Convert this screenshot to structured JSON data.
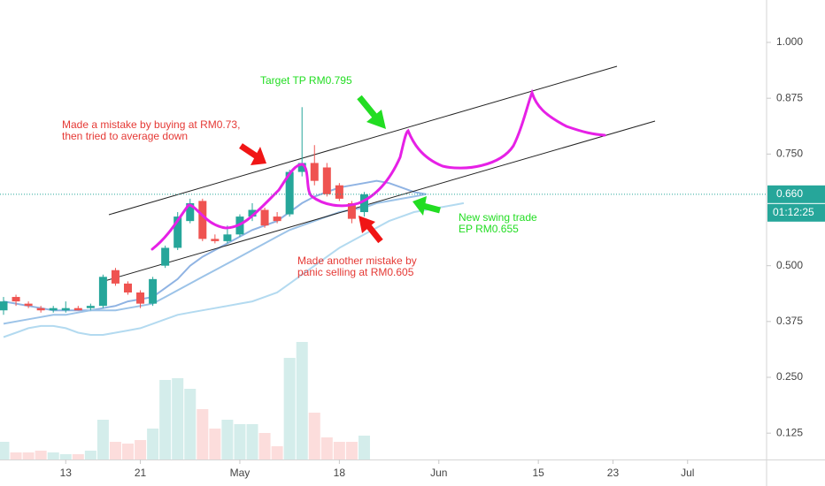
{
  "chart_data": {
    "type": "candlestick",
    "ylim": [
      0.066,
      1.095
    ],
    "yticks": [
      {
        "value": 0.125,
        "label": "0.125"
      },
      {
        "value": 0.25,
        "label": "0.250"
      },
      {
        "value": 0.375,
        "label": "0.375"
      },
      {
        "value": 0.5,
        "label": "0.500"
      },
      {
        "value": 0.75,
        "label": "0.750"
      },
      {
        "value": 0.875,
        "label": "0.875"
      },
      {
        "value": 1.0,
        "label": "1.000"
      }
    ],
    "xlim": [
      -0.285,
      61.28
    ],
    "xticks": [
      {
        "value": 5,
        "label": "13"
      },
      {
        "value": 11,
        "label": "21"
      },
      {
        "value": 19,
        "label": "May"
      },
      {
        "value": 27,
        "label": "18"
      },
      {
        "value": 35,
        "label": "Jun"
      },
      {
        "value": 43,
        "label": "15"
      },
      {
        "value": 49,
        "label": "23"
      },
      {
        "value": 55,
        "label": "Jul"
      }
    ],
    "up_color": "#26a69a",
    "down_color": "#ef5350",
    "open": [
      0.4,
      0.43,
      0.415,
      0.405,
      0.4,
      0.4,
      0.405,
      0.405,
      0.41,
      0.49,
      0.46,
      0.44,
      0.415,
      0.5,
      0.54,
      0.6,
      0.645,
      0.56,
      0.555,
      0.57,
      0.61,
      0.625,
      0.61,
      0.615,
      0.71,
      0.73,
      0.72,
      0.68,
      0.64,
      0.62
    ],
    "high": [
      0.43,
      0.435,
      0.42,
      0.41,
      0.41,
      0.42,
      0.41,
      0.415,
      0.48,
      0.495,
      0.465,
      0.445,
      0.475,
      0.545,
      0.62,
      0.65,
      0.65,
      0.57,
      0.59,
      0.615,
      0.64,
      0.63,
      0.62,
      0.715,
      0.855,
      0.77,
      0.73,
      0.685,
      0.645,
      0.665
    ],
    "low": [
      0.39,
      0.41,
      0.405,
      0.395,
      0.395,
      0.395,
      0.4,
      0.4,
      0.405,
      0.455,
      0.435,
      0.405,
      0.41,
      0.495,
      0.535,
      0.595,
      0.555,
      0.55,
      0.55,
      0.565,
      0.6,
      0.585,
      0.595,
      0.61,
      0.7,
      0.68,
      0.655,
      0.645,
      0.595,
      0.61
    ],
    "close": [
      0.42,
      0.42,
      0.41,
      0.4,
      0.405,
      0.405,
      0.4,
      0.41,
      0.475,
      0.46,
      0.44,
      0.415,
      0.47,
      0.54,
      0.61,
      0.64,
      0.56,
      0.555,
      0.57,
      0.61,
      0.625,
      0.59,
      0.6,
      0.71,
      0.73,
      0.69,
      0.66,
      0.65,
      0.605,
      0.66
    ],
    "volume": [
      20,
      8,
      8,
      10,
      8,
      6,
      6,
      10,
      45,
      20,
      18,
      22,
      35,
      90,
      92,
      80,
      57,
      35,
      45,
      40,
      40,
      30,
      15,
      115,
      133,
      53,
      25,
      20,
      20,
      27
    ],
    "volume_ylim": [
      0,
      520
    ],
    "moving_averages": [
      {
        "color": "#8fb3e3",
        "values": [
          0.42,
          0.415,
          0.41,
          0.405,
          0.4,
          0.4,
          0.4,
          0.4,
          0.405,
          0.41,
          0.42,
          0.425,
          0.43,
          0.45,
          0.47,
          0.5,
          0.52,
          0.535,
          0.55,
          0.565,
          0.58,
          0.59,
          0.6,
          0.62,
          0.64,
          0.655,
          0.665,
          0.675,
          0.68,
          0.685,
          0.69,
          0.685,
          0.675,
          0.665,
          0.66,
          null,
          null,
          null
        ]
      },
      {
        "color": "#9cc3e8",
        "values": [
          0.37,
          0.375,
          0.38,
          0.385,
          0.39,
          0.39,
          0.395,
          0.4,
          0.4,
          0.4,
          0.405,
          0.41,
          0.415,
          0.43,
          0.445,
          0.46,
          0.475,
          0.49,
          0.505,
          0.52,
          0.535,
          0.55,
          0.565,
          0.58,
          0.59,
          0.6,
          0.61,
          0.62,
          0.625,
          0.63,
          0.64,
          0.645,
          0.65,
          0.655,
          0.66,
          null,
          null,
          null
        ]
      },
      {
        "color": "#b3daf0",
        "values": [
          0.34,
          0.35,
          0.36,
          0.365,
          0.365,
          0.36,
          0.35,
          0.345,
          0.345,
          0.35,
          0.355,
          0.36,
          0.37,
          0.38,
          0.39,
          0.395,
          0.4,
          0.405,
          0.41,
          0.415,
          0.42,
          0.43,
          0.44,
          0.46,
          0.48,
          0.5,
          0.52,
          0.54,
          0.555,
          0.57,
          0.585,
          0.6,
          0.61,
          0.62,
          0.625,
          0.63,
          0.635,
          0.64
        ]
      }
    ],
    "last_price": {
      "value": 0.66,
      "label": "0.660"
    },
    "countdown": "01:12:25",
    "annotations": [
      {
        "color": "#22dd22",
        "lines": [
          "Target TP RM0.795"
        ]
      },
      {
        "color": "#e53935",
        "lines": [
          "Made a mistake by buying at RM0.73,",
          "then tried to average down"
        ]
      },
      {
        "color": "#e53935",
        "lines": [
          "Made another mistake by",
          "panic selling at RM0.605"
        ]
      },
      {
        "color": "#22dd22",
        "lines": [
          "New swing trade",
          "EP RM0.655"
        ]
      }
    ]
  }
}
